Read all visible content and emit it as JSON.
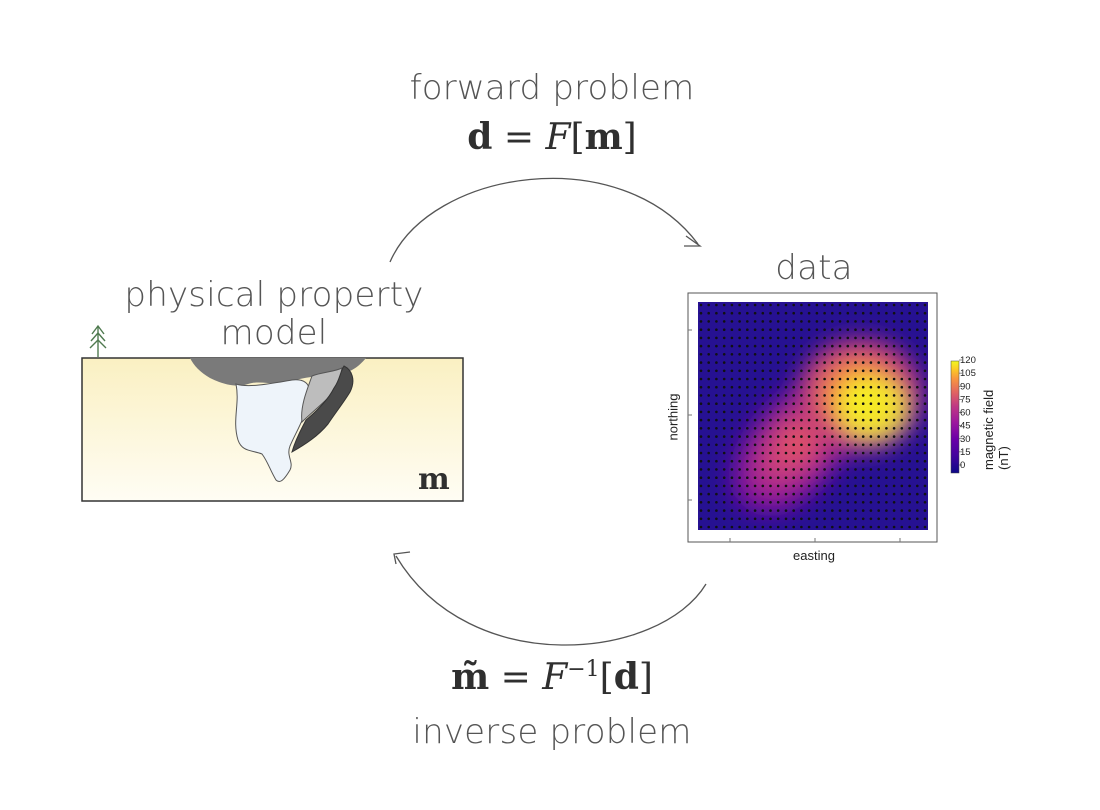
{
  "forward": {
    "label": "forward problem",
    "equation": {
      "lhs": "d",
      "eq": "=",
      "op": "F",
      "open": "[",
      "arg": "m",
      "close": "]"
    }
  },
  "inverse": {
    "label": "inverse problem",
    "equation": {
      "lhs": "m̃",
      "eq": "=",
      "op": "F",
      "sup": "−1",
      "open": "[",
      "arg": "d",
      "close": "]"
    }
  },
  "model": {
    "title_line1": "physical property",
    "title_line2": "model",
    "symbol": "m",
    "colors": {
      "sand": "#faf1c8",
      "overburden": "#7a7a7a",
      "body_light": "#eef4fa",
      "body_mid": "#bdbdbd",
      "body_dark": "#4a4a4a",
      "tree": "#4f7a4f"
    },
    "icons": [
      "tree-icon"
    ]
  },
  "data": {
    "title": "data",
    "xlabel": "easting",
    "ylabel": "northing",
    "colorbar": {
      "label": "magnetic field (nT)",
      "ticks": [
        "120",
        "105",
        "90",
        "75",
        "60",
        "45",
        "30",
        "15",
        "0"
      ],
      "colormap": "plasma"
    },
    "grid_stations": {
      "cols": 30,
      "rows": 28
    }
  }
}
